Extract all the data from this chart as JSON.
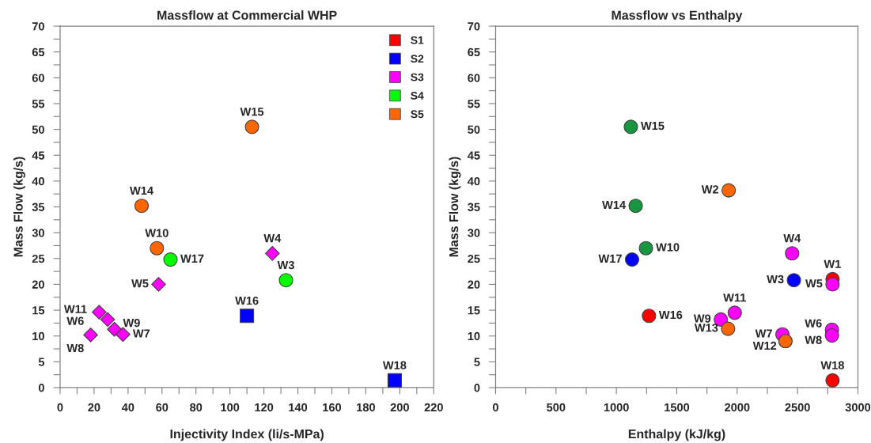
{
  "chart_data": [
    {
      "type": "scatter",
      "title": "Massflow at Commercial WHP",
      "xlabel": "Injectivity Index (li/s-MPa)",
      "ylabel": "Mass Flow (kg/s)",
      "xlim": [
        0,
        220
      ],
      "ylim": [
        0,
        70
      ],
      "xticks": [
        0,
        {
          "value": 10,
          "label": null
        },
        20,
        {
          "value": 30,
          "label": null
        },
        40,
        {
          "value": 50,
          "label": null
        },
        60,
        {
          "value": 70,
          "label": null
        },
        80,
        {
          "value": 90,
          "label": null
        },
        100,
        {
          "value": 110,
          "label": null
        },
        120,
        {
          "value": 130,
          "label": null
        },
        140,
        {
          "value": 150,
          "label": null
        },
        160,
        {
          "value": 170,
          "label": null
        },
        180,
        {
          "value": 190,
          "label": null
        },
        200,
        {
          "value": 210,
          "label": null
        },
        220
      ],
      "yticks": [
        0,
        {
          "value": 2.5,
          "label": null
        },
        5,
        {
          "value": 7.5,
          "label": null
        },
        10,
        {
          "value": 12.5,
          "label": null
        },
        15,
        {
          "value": 17.5,
          "label": null
        },
        20,
        {
          "value": 22.5,
          "label": null
        },
        25,
        {
          "value": 27.5,
          "label": null
        },
        30,
        {
          "value": 32.5,
          "label": null
        },
        35,
        {
          "value": 37.5,
          "label": null
        },
        40,
        {
          "value": 42.5,
          "label": null
        },
        45,
        {
          "value": 47.5,
          "label": null
        },
        50,
        {
          "value": 52.5,
          "label": null
        },
        55,
        {
          "value": 57.5,
          "label": null
        },
        60,
        {
          "value": 62.5,
          "label": null
        },
        65,
        {
          "value": 67.5,
          "label": null
        },
        70
      ],
      "grid": false,
      "legend": "top right",
      "series": [
        {
          "name": "S1",
          "color": "#ff0000",
          "marker": "square"
        },
        {
          "name": "S2",
          "color": "#0000ff",
          "marker": "square",
          "x": [
            110,
            197
          ],
          "values": [
            13.9,
            1.4
          ]
        },
        {
          "name": "S3",
          "color": "#ff00ff",
          "marker": "diamond",
          "x": [
            125,
            58,
            23,
            28,
            32,
            37,
            18
          ],
          "values": [
            26,
            20,
            14.6,
            13.2,
            11.3,
            10.3,
            10.2
          ]
        },
        {
          "name": "S4",
          "color": "#00ff00",
          "marker": "circle",
          "x": [
            65,
            133
          ],
          "values": [
            24.8,
            20.8
          ]
        },
        {
          "name": "S5",
          "color": "#ff6600",
          "marker": "circle",
          "x": [
            113,
            48,
            57
          ],
          "values": [
            50.5,
            35.2,
            27
          ]
        }
      ],
      "annotations": [
        {
          "text": "W15",
          "x": 113,
          "y": 50.5
        },
        {
          "text": "W14",
          "x": 48,
          "y": 35.2
        },
        {
          "text": "W10",
          "x": 57,
          "y": 27
        },
        {
          "text": "W17",
          "x": 65,
          "y": 24.8
        },
        {
          "text": "W5",
          "x": 58,
          "y": 20
        },
        {
          "text": "W4",
          "x": 125,
          "y": 26
        },
        {
          "text": "W3",
          "x": 133,
          "y": 20.8
        },
        {
          "text": "W16",
          "x": 110,
          "y": 13.9
        },
        {
          "text": "W11",
          "x": 23,
          "y": 14.6
        },
        {
          "text": "W9",
          "x": 28,
          "y": 13.2
        },
        {
          "text": "W7",
          "x": 37,
          "y": 10.3
        },
        {
          "text": "W6",
          "x": 18,
          "y": 10.2
        },
        {
          "text": "W8",
          "x": 18,
          "y": 10.2
        },
        {
          "text": "W18",
          "x": 197,
          "y": 1.4
        }
      ]
    },
    {
      "type": "scatter",
      "title": "Massflow vs Enthalpy",
      "xlabel": "Enthalpy (kJ/kg)",
      "ylabel": "Mass Flow (kg/s)",
      "xlim": [
        0,
        3000
      ],
      "ylim": [
        0,
        70
      ],
      "xticks": [
        0,
        {
          "value": 250,
          "label": null
        },
        500,
        {
          "value": 750,
          "label": null
        },
        1000,
        {
          "value": 1250,
          "label": null
        },
        1500,
        {
          "value": 1750,
          "label": null
        },
        2000,
        {
          "value": 2250,
          "label": null
        },
        2500,
        {
          "value": 2750,
          "label": null
        },
        3000
      ],
      "yticks": [
        0,
        {
          "value": 2.5,
          "label": null
        },
        5,
        {
          "value": 7.5,
          "label": null
        },
        10,
        {
          "value": 12.5,
          "label": null
        },
        15,
        {
          "value": 17.5,
          "label": null
        },
        20,
        {
          "value": 22.5,
          "label": null
        },
        25,
        {
          "value": 27.5,
          "label": null
        },
        30,
        {
          "value": 32.5,
          "label": null
        },
        35,
        {
          "value": 37.5,
          "label": null
        },
        40,
        {
          "value": 42.5,
          "label": null
        },
        45,
        {
          "value": 47.5,
          "label": null
        },
        50,
        {
          "value": 52.5,
          "label": null
        },
        55,
        {
          "value": 57.5,
          "label": null
        },
        60,
        {
          "value": 62.5,
          "label": null
        },
        65,
        {
          "value": 67.5,
          "label": null
        },
        70
      ],
      "grid": false,
      "series": [
        {
          "color": "#ff0000",
          "marker": "circle",
          "x": [
            2790,
            1270,
            2790
          ],
          "values": [
            21,
            13.9,
            1.4
          ]
        },
        {
          "color": "#0000ff",
          "marker": "circle",
          "x": [
            1130,
            2470
          ],
          "values": [
            24.8,
            20.8
          ]
        },
        {
          "color": "#ff00ff",
          "marker": "circle",
          "x": [
            2455,
            2790,
            1980,
            1865,
            2375,
            2785,
            2785
          ],
          "values": [
            26,
            20,
            14.5,
            13.2,
            10.3,
            11.2,
            10.1
          ]
        },
        {
          "color": "#1a9641",
          "marker": "circle",
          "x": [
            1120,
            1160,
            1245
          ],
          "values": [
            50.5,
            35.2,
            27
          ]
        },
        {
          "color": "#ff6600",
          "marker": "circle",
          "x": [
            1930,
            1925,
            2400
          ],
          "values": [
            38.2,
            11.4,
            9
          ]
        }
      ],
      "annotations": [
        {
          "text": "W15",
          "x": 1120,
          "y": 50.5
        },
        {
          "text": "W14",
          "x": 1160,
          "y": 35.2
        },
        {
          "text": "W2",
          "x": 1930,
          "y": 38.2
        },
        {
          "text": "W10",
          "x": 1245,
          "y": 27
        },
        {
          "text": "W17",
          "x": 1130,
          "y": 24.8
        },
        {
          "text": "W4",
          "x": 2455,
          "y": 26
        },
        {
          "text": "W1",
          "x": 2790,
          "y": 21
        },
        {
          "text": "W3",
          "x": 2470,
          "y": 20.8
        },
        {
          "text": "W5",
          "x": 2790,
          "y": 20
        },
        {
          "text": "W16",
          "x": 1270,
          "y": 13.9
        },
        {
          "text": "W11",
          "x": 1980,
          "y": 14.5
        },
        {
          "text": "W9",
          "x": 1865,
          "y": 13.2
        },
        {
          "text": "W13",
          "x": 1925,
          "y": 11.4
        },
        {
          "text": "W7",
          "x": 2375,
          "y": 10.3
        },
        {
          "text": "W12",
          "x": 2400,
          "y": 9
        },
        {
          "text": "W6",
          "x": 2785,
          "y": 11.2
        },
        {
          "text": "W8",
          "x": 2785,
          "y": 10.1
        },
        {
          "text": "W18",
          "x": 2790,
          "y": 1.4
        }
      ]
    }
  ]
}
